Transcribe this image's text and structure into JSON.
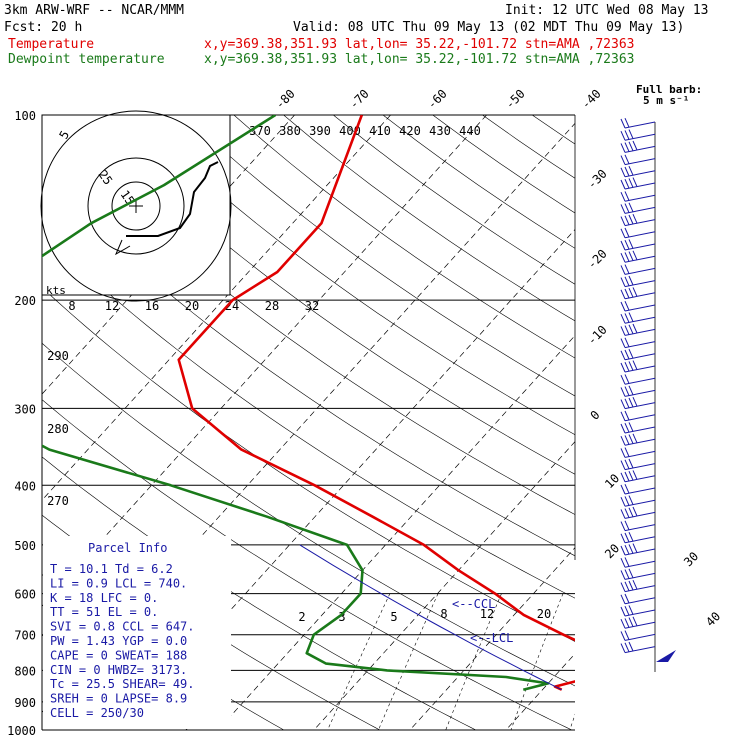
{
  "header": {
    "model": "3km ARW-WRF -- NCAR/MMM",
    "init": "Init: 12 UTC Wed 08 May 13",
    "fcst": "Fcst:   20 h",
    "valid": "Valid: 08 UTC Thu 09 May 13 (02 MDT Thu 09 May 13)",
    "temp_label": "Temperature",
    "temp_info": "x,y=369.38,351.93   lat,lon= 35.22,-101.72  stn=AMA ,72363",
    "dew_label": "Dewpoint temperature",
    "dew_info": "x,y=369.38,351.93   lat,lon= 35.22,-101.72  stn=AMA ,72363",
    "barb_title": "Full barb:",
    "barb_unit": "5 m s⁻¹"
  },
  "colors": {
    "temperature": "#e00000",
    "dewpoint": "#1a7a1a",
    "parcel": "#1a1aa6",
    "grid": "#000000"
  },
  "chart_data": {
    "type": "line",
    "title": "",
    "y_axis": "Pressure (hPa), log scale",
    "pressure_ticks": [
      100,
      200,
      300,
      400,
      500,
      600,
      700,
      800,
      900,
      1000
    ],
    "isotherm_labels": [
      "-80",
      "-70",
      "-60",
      "-50",
      "-40",
      "-30",
      "-20",
      "-10",
      "0",
      "10",
      "20",
      "30",
      "40"
    ],
    "theta_labels": [
      "370",
      "380",
      "390",
      "400",
      "410",
      "420",
      "430",
      "440"
    ],
    "hodograph_speed_labels": [
      "8",
      "12",
      "16",
      "20",
      "24",
      "28",
      "32"
    ],
    "hodograph_ring_labels": [
      "5",
      "25",
      "15"
    ],
    "hodograph_units": "kts",
    "theta_e_labels": [
      "290",
      "280",
      "270"
    ],
    "mixing_ratio_labels": [
      "2",
      "3",
      "5",
      "8",
      "12",
      "20"
    ],
    "series": [
      {
        "name": "Temperature",
        "pressure": [
          100,
          150,
          180,
          200,
          250,
          300,
          350,
          400,
          450,
          500,
          550,
          600,
          650,
          700,
          750,
          780,
          800,
          830,
          850,
          860
        ],
        "values": [
          -63,
          -57,
          -57,
          -59,
          -59,
          -53,
          -44,
          -33,
          -24,
          -16,
          -10,
          -4,
          1,
          7,
          13,
          15,
          14,
          13,
          11,
          12
        ]
      },
      {
        "name": "Dewpoint temperature",
        "pressure": [
          100,
          130,
          150,
          180,
          200,
          250,
          300,
          350,
          400,
          450,
          500,
          550,
          600,
          650,
          700,
          750,
          780,
          800,
          820,
          840,
          860
        ],
        "values": [
          -72,
          -77,
          -81,
          -84,
          -83,
          -81,
          -76,
          -64,
          -48,
          -35,
          -24,
          -20,
          -18,
          -18,
          -19,
          -18,
          -15,
          -8,
          5,
          10,
          8
        ]
      }
    ],
    "annotations": [
      "<--CCL",
      "<--LCL"
    ],
    "parcel_info": {
      "title": "Parcel Info",
      "rows": [
        "T   =   10.1  Td =    6.2",
        "LI  =    0.9  LCL =  740.",
        "K   =     18  LFC =    0.",
        "TT  =     51  EL  =    0.",
        "SVI =    0.8  CCL =  647.",
        "PW  =   1.43  YGP =   0.0",
        "CAPE =     0  SWEAT=  188",
        "CIN  =     0  HWBZ= 3173.",
        "Tc   =  25.5  SHEAR=  49.",
        "SREH =     0  LAPSE=  8.9",
        "CELL = 250/30"
      ]
    }
  }
}
